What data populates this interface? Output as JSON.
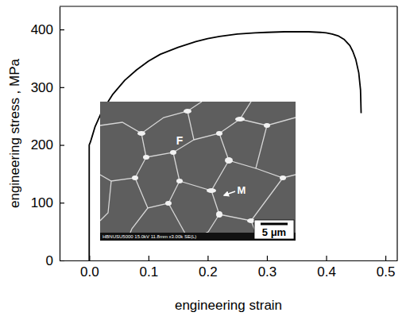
{
  "chart_data": {
    "type": "line",
    "x_label": "engineering strain",
    "y_label": "engineering stress , MPa",
    "x": [
      0,
      0,
      0.002,
      0.005,
      0.01,
      0.02,
      0.03,
      0.04,
      0.06,
      0.08,
      0.1,
      0.12,
      0.15,
      0.18,
      0.2,
      0.22,
      0.25,
      0.28,
      0.3,
      0.33,
      0.35,
      0.37,
      0.39,
      0.4,
      0.41,
      0.42,
      0.43,
      0.44,
      0.445,
      0.45,
      0.455,
      0.458,
      0.459
    ],
    "values": [
      0,
      200,
      205,
      215,
      232,
      255,
      272,
      288,
      312,
      330,
      345,
      357,
      369,
      379,
      384,
      388,
      392,
      394,
      395,
      396,
      396,
      396,
      395,
      394,
      392,
      389,
      383,
      372,
      362,
      348,
      325,
      295,
      255
    ],
    "color": "#000000",
    "xlim": [
      -0.05,
      0.52
    ],
    "ylim": [
      0,
      440
    ],
    "xticks": [
      {
        "value": 0,
        "label": "0.0"
      },
      0.1,
      0.2,
      0.3,
      0.4,
      0.5
    ],
    "yticks": [
      0,
      100,
      200,
      300,
      400
    ],
    "grid": false,
    "annotations": [
      "F",
      "M",
      "5 μm",
      "HBNUSU5000 15.0kV 11.8mm x3.00k SE(L)"
    ]
  }
}
